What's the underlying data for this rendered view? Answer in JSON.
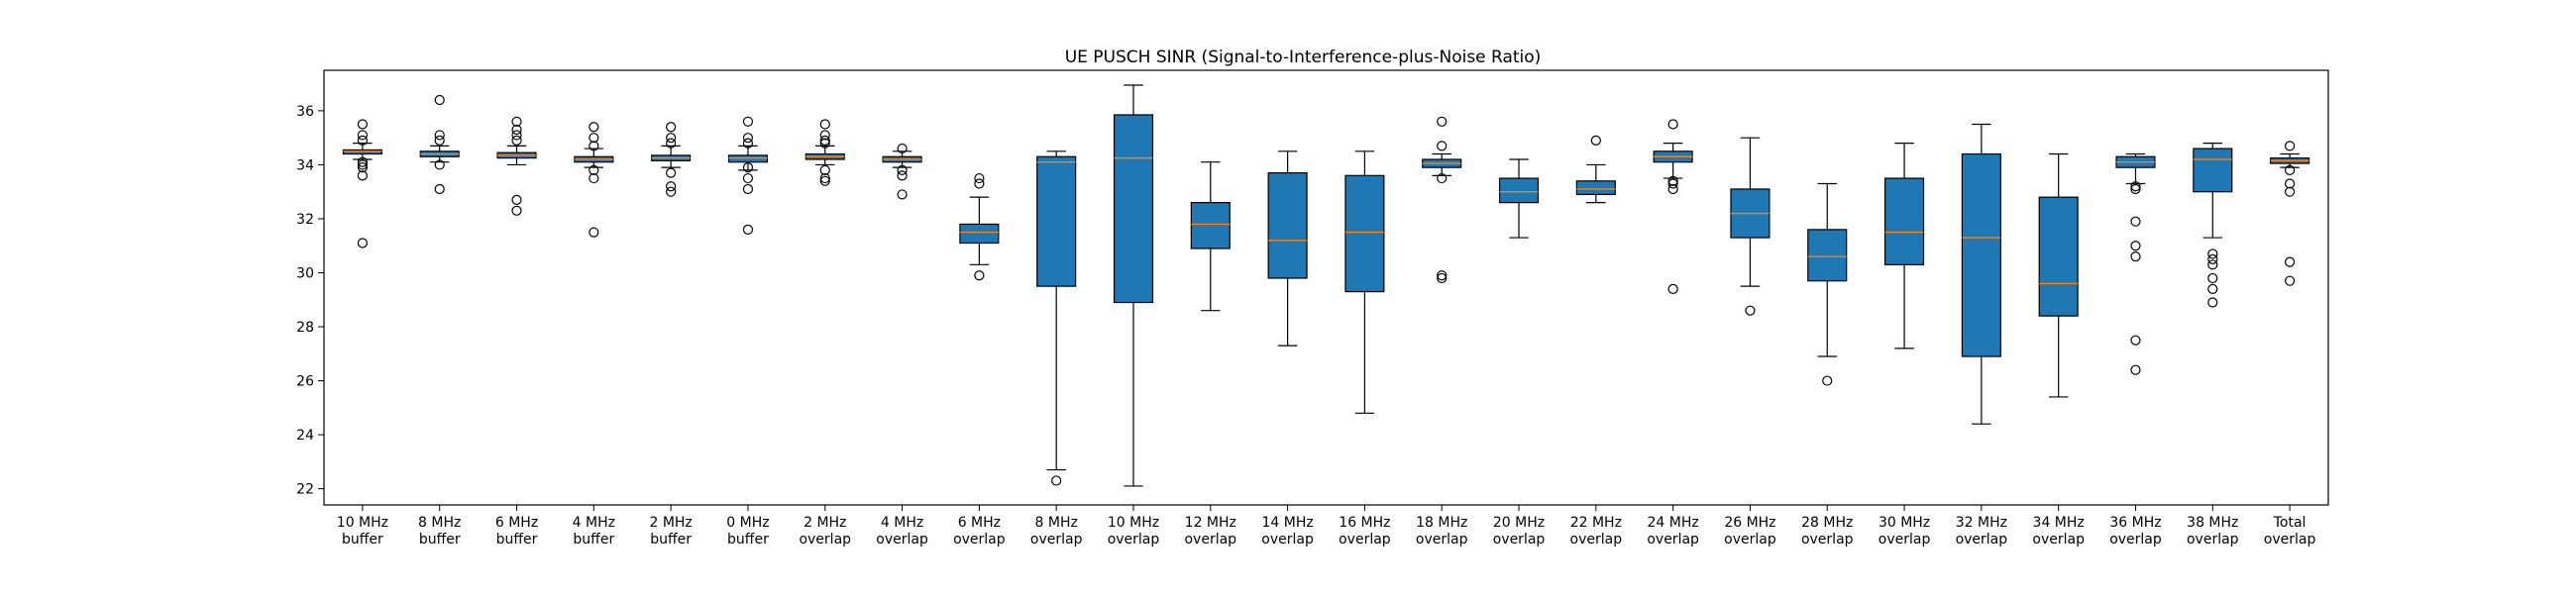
{
  "chart_data": {
    "type": "boxplot",
    "title": "UE PUSCH SINR (Signal-to-Interference-plus-Noise Ratio)",
    "xlabel": "",
    "ylabel": "",
    "ylim": [
      21.4,
      37.5
    ],
    "yticks": [
      22,
      24,
      26,
      28,
      30,
      32,
      34,
      36
    ],
    "grid": false,
    "box_color": "#1f77b4",
    "median_color": "#ff7f0e",
    "categories": [
      {
        "line1": "10 MHz",
        "line2": "buffer"
      },
      {
        "line1": "8 MHz",
        "line2": "buffer"
      },
      {
        "line1": "6 MHz",
        "line2": "buffer"
      },
      {
        "line1": "4 MHz",
        "line2": "buffer"
      },
      {
        "line1": "2 MHz",
        "line2": "buffer"
      },
      {
        "line1": "0 MHz",
        "line2": "buffer"
      },
      {
        "line1": "2 MHz",
        "line2": "overlap"
      },
      {
        "line1": "4 MHz",
        "line2": "overlap"
      },
      {
        "line1": "6 MHz",
        "line2": "overlap"
      },
      {
        "line1": "8 MHz",
        "line2": "overlap"
      },
      {
        "line1": "10 MHz",
        "line2": "overlap"
      },
      {
        "line1": "12 MHz",
        "line2": "overlap"
      },
      {
        "line1": "14 MHz",
        "line2": "overlap"
      },
      {
        "line1": "16 MHz",
        "line2": "overlap"
      },
      {
        "line1": "18 MHz",
        "line2": "overlap"
      },
      {
        "line1": "20 MHz",
        "line2": "overlap"
      },
      {
        "line1": "22 MHz",
        "line2": "overlap"
      },
      {
        "line1": "24 MHz",
        "line2": "overlap"
      },
      {
        "line1": "26 MHz",
        "line2": "overlap"
      },
      {
        "line1": "28 MHz",
        "line2": "overlap"
      },
      {
        "line1": "30 MHz",
        "line2": "overlap"
      },
      {
        "line1": "32 MHz",
        "line2": "overlap"
      },
      {
        "line1": "34 MHz",
        "line2": "overlap"
      },
      {
        "line1": "36 MHz",
        "line2": "overlap"
      },
      {
        "line1": "38 MHz",
        "line2": "overlap"
      },
      {
        "line1": "Total",
        "line2": "overlap"
      }
    ],
    "boxes": [
      {
        "whislo": 34.2,
        "q1": 34.4,
        "med": 34.5,
        "q3": 34.55,
        "whishi": 34.8,
        "fliers": [
          35.5,
          35.1,
          34.9,
          34.1,
          34.0,
          33.9,
          33.6,
          31.1
        ]
      },
      {
        "whislo": 34.1,
        "q1": 34.3,
        "med": 34.4,
        "q3": 34.5,
        "whishi": 34.7,
        "fliers": [
          36.4,
          35.1,
          34.9,
          34.0,
          33.1
        ]
      },
      {
        "whislo": 34.0,
        "q1": 34.25,
        "med": 34.35,
        "q3": 34.45,
        "whishi": 34.7,
        "fliers": [
          35.6,
          35.3,
          35.1,
          34.9,
          32.7,
          32.3
        ]
      },
      {
        "whislo": 33.9,
        "q1": 34.1,
        "med": 34.2,
        "q3": 34.3,
        "whishi": 34.6,
        "fliers": [
          35.4,
          35.0,
          34.7,
          33.8,
          33.5,
          31.5
        ]
      },
      {
        "whislo": 33.9,
        "q1": 34.15,
        "med": 34.25,
        "q3": 34.35,
        "whishi": 34.7,
        "fliers": [
          35.4,
          35.0,
          34.8,
          33.7,
          33.2,
          33.0
        ]
      },
      {
        "whislo": 33.8,
        "q1": 34.1,
        "med": 34.25,
        "q3": 34.35,
        "whishi": 34.7,
        "fliers": [
          35.6,
          35.0,
          34.8,
          33.9,
          33.5,
          33.1,
          31.6
        ]
      },
      {
        "whislo": 34.0,
        "q1": 34.2,
        "med": 34.3,
        "q3": 34.4,
        "whishi": 34.7,
        "fliers": [
          35.5,
          35.1,
          34.9,
          34.8,
          33.8,
          33.5,
          33.4
        ]
      },
      {
        "whislo": 33.9,
        "q1": 34.1,
        "med": 34.2,
        "q3": 34.3,
        "whishi": 34.5,
        "fliers": [
          34.6,
          33.8,
          33.6,
          32.9
        ]
      },
      {
        "whislo": 30.3,
        "q1": 31.1,
        "med": 31.5,
        "q3": 31.8,
        "whishi": 32.8,
        "fliers": [
          33.5,
          33.3,
          29.9
        ]
      },
      {
        "whislo": 22.7,
        "q1": 29.5,
        "med": 34.1,
        "q3": 34.3,
        "whishi": 34.5,
        "fliers": [
          22.3
        ]
      },
      {
        "whislo": 22.1,
        "q1": 28.9,
        "med": 34.25,
        "q3": 35.85,
        "whishi": 36.95,
        "fliers": []
      },
      {
        "whislo": 28.6,
        "q1": 30.9,
        "med": 31.8,
        "q3": 32.6,
        "whishi": 34.1,
        "fliers": []
      },
      {
        "whislo": 27.3,
        "q1": 29.8,
        "med": 31.2,
        "q3": 33.7,
        "whishi": 34.5,
        "fliers": []
      },
      {
        "whislo": 24.8,
        "q1": 29.3,
        "med": 31.5,
        "q3": 33.6,
        "whishi": 34.5,
        "fliers": []
      },
      {
        "whislo": 33.6,
        "q1": 33.9,
        "med": 34.05,
        "q3": 34.2,
        "whishi": 34.4,
        "fliers": [
          35.6,
          34.7,
          33.5,
          29.9,
          29.8
        ]
      },
      {
        "whislo": 31.3,
        "q1": 32.6,
        "med": 33.0,
        "q3": 33.5,
        "whishi": 34.2,
        "fliers": []
      },
      {
        "whislo": 32.6,
        "q1": 32.9,
        "med": 33.1,
        "q3": 33.4,
        "whishi": 34.0,
        "fliers": [
          34.9
        ]
      },
      {
        "whislo": 33.5,
        "q1": 34.1,
        "med": 34.3,
        "q3": 34.5,
        "whishi": 34.8,
        "fliers": [
          35.5,
          33.4,
          33.3,
          33.1,
          29.4
        ]
      },
      {
        "whislo": 29.5,
        "q1": 31.3,
        "med": 32.2,
        "q3": 33.1,
        "whishi": 35.0,
        "fliers": [
          28.6
        ]
      },
      {
        "whislo": 26.9,
        "q1": 29.7,
        "med": 30.6,
        "q3": 31.6,
        "whishi": 33.3,
        "fliers": [
          26.0
        ]
      },
      {
        "whislo": 27.2,
        "q1": 30.3,
        "med": 31.5,
        "q3": 33.5,
        "whishi": 34.8,
        "fliers": []
      },
      {
        "whislo": 24.4,
        "q1": 26.9,
        "med": 31.3,
        "q3": 34.4,
        "whishi": 35.5,
        "fliers": []
      },
      {
        "whislo": 25.4,
        "q1": 28.4,
        "med": 29.6,
        "q3": 32.8,
        "whishi": 34.4,
        "fliers": []
      },
      {
        "whislo": 33.3,
        "q1": 33.9,
        "med": 34.1,
        "q3": 34.3,
        "whishi": 34.4,
        "fliers": [
          33.2,
          33.1,
          31.9,
          31.0,
          30.6,
          27.5,
          26.4
        ]
      },
      {
        "whislo": 31.3,
        "q1": 33.0,
        "med": 34.2,
        "q3": 34.6,
        "whishi": 34.8,
        "fliers": [
          30.7,
          30.5,
          30.3,
          29.8,
          29.4,
          28.9
        ]
      },
      {
        "whislo": 33.9,
        "q1": 34.05,
        "med": 34.15,
        "q3": 34.25,
        "whishi": 34.4,
        "fliers": [
          34.7,
          33.8,
          33.3,
          33.0,
          30.4,
          29.7
        ]
      }
    ]
  }
}
